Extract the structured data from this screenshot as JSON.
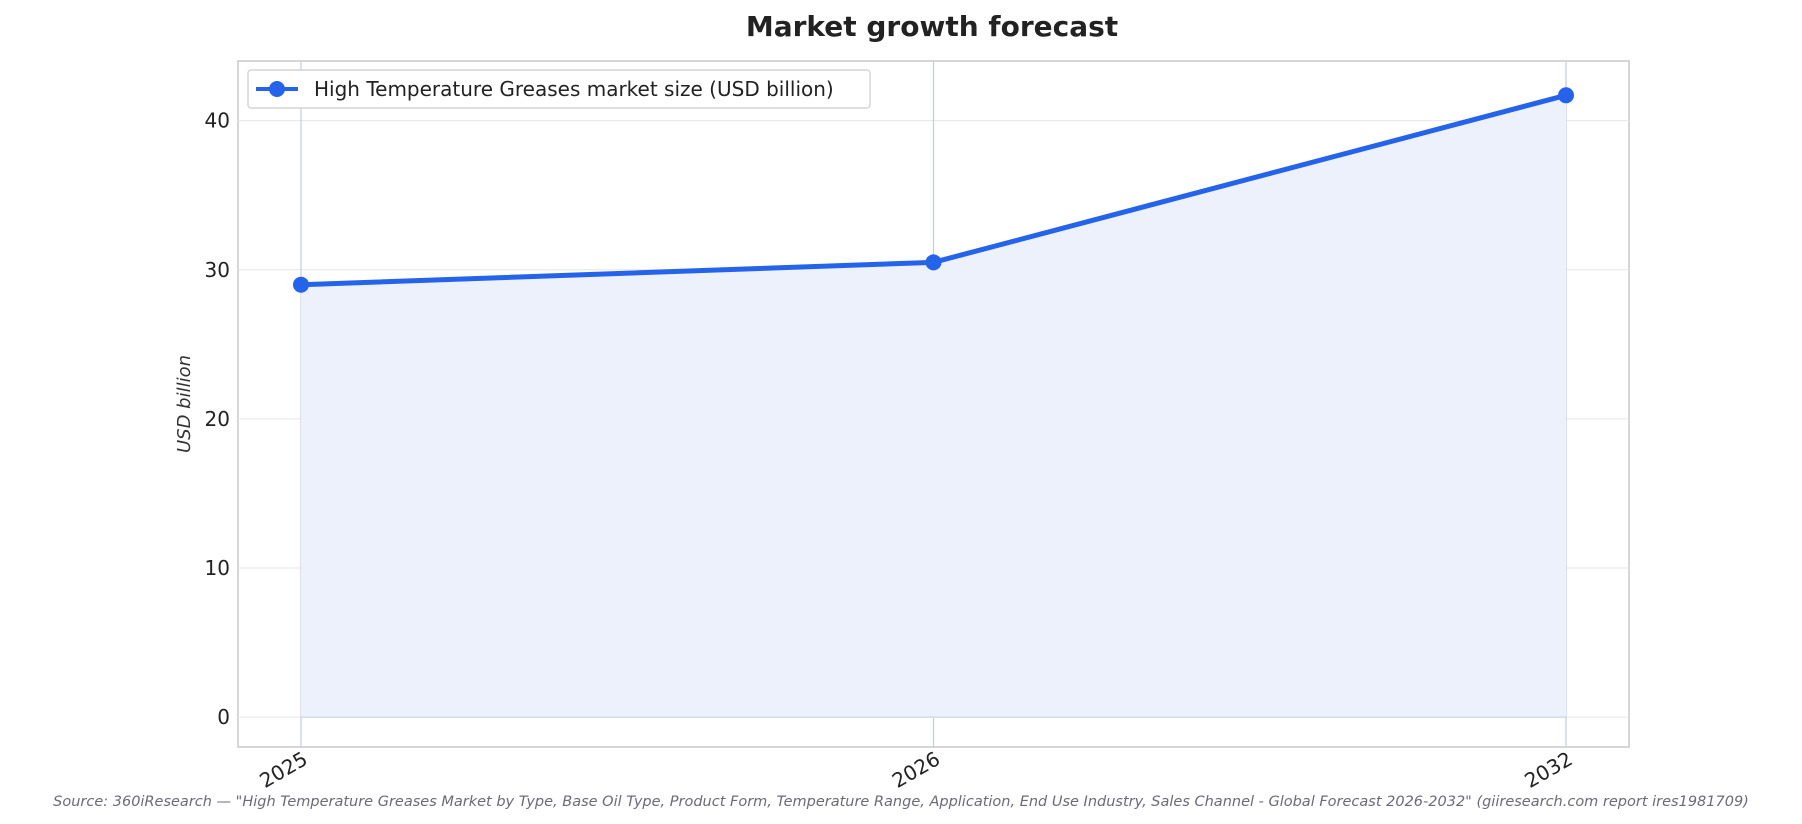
{
  "chart_data": {
    "type": "line",
    "title": "Market growth forecast",
    "xlabel": "",
    "ylabel": "USD billion",
    "x": [
      "2025",
      "2026",
      "2032"
    ],
    "series": [
      {
        "name": "High Temperature Greases market size (USD billion)",
        "values": [
          29.0,
          30.5,
          41.7
        ]
      }
    ],
    "ylim": [
      -2,
      44
    ],
    "yticks": [
      0,
      10,
      20,
      30,
      40
    ],
    "grid": true,
    "legend": "top-left",
    "fill_under_line": true,
    "colors": {
      "line": "#2563eb",
      "fill": "#ecf1fb"
    },
    "source": "Source: 360iResearch — \"High Temperature Greases Market by Type, Base Oil Type, Product Form, Temperature Range, Application, End Use Industry, Sales Channel - Global Forecast 2026-2032\" (giiresearch.com report ires1981709)"
  }
}
